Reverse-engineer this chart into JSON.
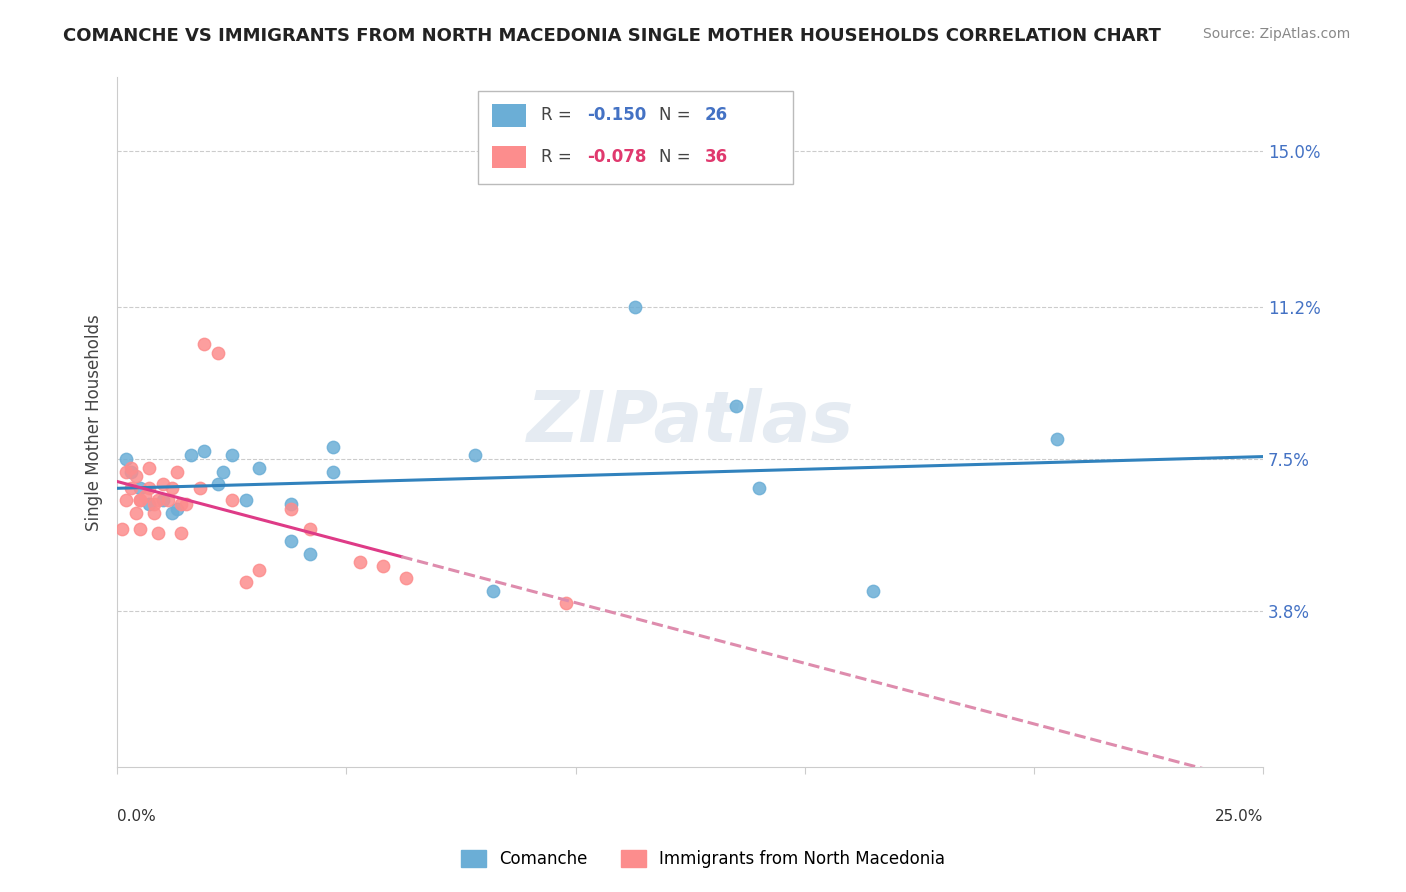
{
  "title": "COMANCHE VS IMMIGRANTS FROM NORTH MACEDONIA SINGLE MOTHER HOUSEHOLDS CORRELATION CHART",
  "source": "Source: ZipAtlas.com",
  "ylabel": "Single Mother Households",
  "ytick_labels": [
    "3.8%",
    "7.5%",
    "11.2%",
    "15.0%"
  ],
  "ytick_values": [
    0.038,
    0.075,
    0.112,
    0.15
  ],
  "xlim": [
    0.0,
    0.25
  ],
  "ylim": [
    0.0,
    0.168
  ],
  "legend1_r": "-0.150",
  "legend1_n": "26",
  "legend2_r": "-0.078",
  "legend2_n": "36",
  "legend1_label": "Comanche",
  "legend2_label": "Immigrants from North Macedonia",
  "blue_color": "#6baed6",
  "pink_color": "#fc8d8d",
  "blue_line_color": "#3182bd",
  "pink_line_color": "#de3b87",
  "pink_dashed_color": "#de8cad",
  "watermark": "ZIPatlas",
  "comanche_x": [
    0.002,
    0.003,
    0.005,
    0.007,
    0.01,
    0.012,
    0.013,
    0.016,
    0.019,
    0.022,
    0.023,
    0.025,
    0.028,
    0.031,
    0.038,
    0.038,
    0.042,
    0.047,
    0.047,
    0.078,
    0.082,
    0.113,
    0.135,
    0.14,
    0.165,
    0.205
  ],
  "comanche_y": [
    0.075,
    0.072,
    0.068,
    0.064,
    0.065,
    0.062,
    0.063,
    0.076,
    0.077,
    0.069,
    0.072,
    0.076,
    0.065,
    0.073,
    0.064,
    0.055,
    0.052,
    0.072,
    0.078,
    0.076,
    0.043,
    0.112,
    0.088,
    0.068,
    0.043,
    0.08
  ],
  "macedonia_x": [
    0.001,
    0.002,
    0.002,
    0.003,
    0.003,
    0.004,
    0.004,
    0.005,
    0.005,
    0.005,
    0.006,
    0.007,
    0.007,
    0.008,
    0.008,
    0.009,
    0.009,
    0.01,
    0.011,
    0.012,
    0.013,
    0.014,
    0.014,
    0.015,
    0.018,
    0.019,
    0.022,
    0.025,
    0.028,
    0.031,
    0.038,
    0.042,
    0.053,
    0.058,
    0.063,
    0.098
  ],
  "macedonia_y": [
    0.058,
    0.072,
    0.065,
    0.073,
    0.068,
    0.062,
    0.071,
    0.065,
    0.058,
    0.065,
    0.066,
    0.073,
    0.068,
    0.062,
    0.064,
    0.057,
    0.065,
    0.069,
    0.065,
    0.068,
    0.072,
    0.057,
    0.064,
    0.064,
    0.068,
    0.103,
    0.101,
    0.065,
    0.045,
    0.048,
    0.063,
    0.058,
    0.05,
    0.049,
    0.046,
    0.04
  ]
}
